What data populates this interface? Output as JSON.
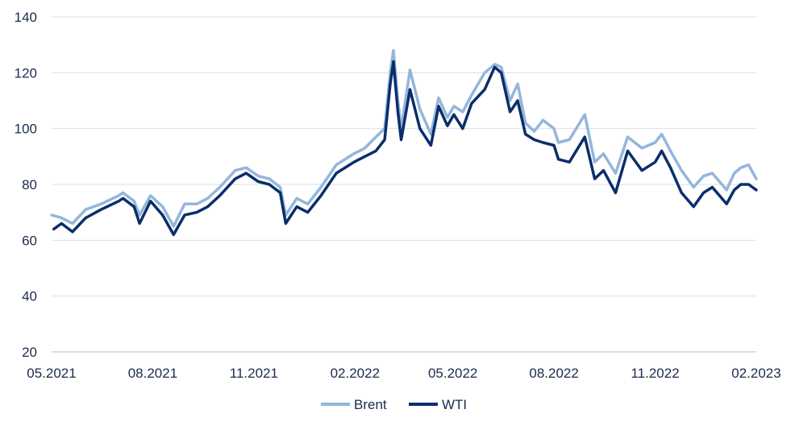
{
  "chart_data": {
    "type": "line",
    "title": "",
    "xlabel": "",
    "ylabel": "",
    "ylim": [
      20,
      140
    ],
    "yticks": [
      20,
      40,
      60,
      80,
      100,
      120,
      140
    ],
    "xlim": [
      "2021-05-01",
      "2023-02-01"
    ],
    "xticks": [
      {
        "date": "2021-05-01",
        "label": "05.2021"
      },
      {
        "date": "2021-08-01",
        "label": "08.2021"
      },
      {
        "date": "2021-11-01",
        "label": "11.2021"
      },
      {
        "date": "2022-02-01",
        "label": "02.2022"
      },
      {
        "date": "2022-05-01",
        "label": "05.2022"
      },
      {
        "date": "2022-08-01",
        "label": "08.2022"
      },
      {
        "date": "2022-11-01",
        "label": "11.2022"
      },
      {
        "date": "2023-02-01",
        "label": "02.2023"
      }
    ],
    "grid": true,
    "legend_position": "bottom-center",
    "series": [
      {
        "name": "Brent",
        "color": "#94b6dc",
        "points": [
          [
            "2021-05-01",
            69
          ],
          [
            "2021-05-10",
            68
          ],
          [
            "2021-05-20",
            66
          ],
          [
            "2021-06-01",
            71
          ],
          [
            "2021-06-15",
            73
          ],
          [
            "2021-07-01",
            76
          ],
          [
            "2021-07-05",
            77
          ],
          [
            "2021-07-15",
            74
          ],
          [
            "2021-07-20",
            69
          ],
          [
            "2021-07-30",
            76
          ],
          [
            "2021-08-10",
            72
          ],
          [
            "2021-08-20",
            65
          ],
          [
            "2021-08-30",
            73
          ],
          [
            "2021-09-10",
            73
          ],
          [
            "2021-09-20",
            75
          ],
          [
            "2021-10-01",
            79
          ],
          [
            "2021-10-15",
            85
          ],
          [
            "2021-10-25",
            86
          ],
          [
            "2021-11-05",
            83
          ],
          [
            "2021-11-15",
            82
          ],
          [
            "2021-11-25",
            79
          ],
          [
            "2021-11-30",
            69
          ],
          [
            "2021-12-10",
            75
          ],
          [
            "2021-12-20",
            73
          ],
          [
            "2022-01-01",
            79
          ],
          [
            "2022-01-15",
            87
          ],
          [
            "2022-01-31",
            91
          ],
          [
            "2022-02-10",
            93
          ],
          [
            "2022-02-20",
            97
          ],
          [
            "2022-02-28",
            100
          ],
          [
            "2022-03-05",
            120
          ],
          [
            "2022-03-08",
            128
          ],
          [
            "2022-03-12",
            110
          ],
          [
            "2022-03-15",
            100
          ],
          [
            "2022-03-23",
            121
          ],
          [
            "2022-04-01",
            107
          ],
          [
            "2022-04-11",
            98
          ],
          [
            "2022-04-18",
            111
          ],
          [
            "2022-04-26",
            104
          ],
          [
            "2022-05-02",
            108
          ],
          [
            "2022-05-10",
            106
          ],
          [
            "2022-05-18",
            112
          ],
          [
            "2022-05-30",
            120
          ],
          [
            "2022-06-08",
            123
          ],
          [
            "2022-06-14",
            122
          ],
          [
            "2022-06-22",
            110
          ],
          [
            "2022-06-29",
            116
          ],
          [
            "2022-07-06",
            102
          ],
          [
            "2022-07-14",
            99
          ],
          [
            "2022-07-22",
            103
          ],
          [
            "2022-08-01",
            100
          ],
          [
            "2022-08-05",
            95
          ],
          [
            "2022-08-15",
            96
          ],
          [
            "2022-08-29",
            105
          ],
          [
            "2022-09-07",
            88
          ],
          [
            "2022-09-15",
            91
          ],
          [
            "2022-09-26",
            84
          ],
          [
            "2022-10-07",
            97
          ],
          [
            "2022-10-20",
            93
          ],
          [
            "2022-11-01",
            95
          ],
          [
            "2022-11-07",
            98
          ],
          [
            "2022-11-15",
            92
          ],
          [
            "2022-11-25",
            85
          ],
          [
            "2022-12-06",
            79
          ],
          [
            "2022-12-15",
            83
          ],
          [
            "2022-12-23",
            84
          ],
          [
            "2023-01-05",
            78
          ],
          [
            "2023-01-12",
            84
          ],
          [
            "2023-01-18",
            86
          ],
          [
            "2023-01-25",
            87
          ],
          [
            "2023-02-01",
            82
          ]
        ]
      },
      {
        "name": "WTI",
        "color": "#0b2e6b",
        "points": [
          [
            "2021-05-03",
            64
          ],
          [
            "2021-05-10",
            66
          ],
          [
            "2021-05-20",
            63
          ],
          [
            "2021-06-01",
            68
          ],
          [
            "2021-06-15",
            71
          ],
          [
            "2021-07-01",
            74
          ],
          [
            "2021-07-05",
            75
          ],
          [
            "2021-07-15",
            72
          ],
          [
            "2021-07-20",
            66
          ],
          [
            "2021-07-30",
            74
          ],
          [
            "2021-08-10",
            69
          ],
          [
            "2021-08-20",
            62
          ],
          [
            "2021-08-30",
            69
          ],
          [
            "2021-09-10",
            70
          ],
          [
            "2021-09-20",
            72
          ],
          [
            "2021-10-01",
            76
          ],
          [
            "2021-10-15",
            82
          ],
          [
            "2021-10-25",
            84
          ],
          [
            "2021-11-05",
            81
          ],
          [
            "2021-11-15",
            80
          ],
          [
            "2021-11-25",
            77
          ],
          [
            "2021-11-30",
            66
          ],
          [
            "2021-12-10",
            72
          ],
          [
            "2021-12-20",
            70
          ],
          [
            "2022-01-01",
            76
          ],
          [
            "2022-01-15",
            84
          ],
          [
            "2022-01-31",
            88
          ],
          [
            "2022-02-10",
            90
          ],
          [
            "2022-02-20",
            92
          ],
          [
            "2022-02-28",
            96
          ],
          [
            "2022-03-05",
            116
          ],
          [
            "2022-03-08",
            124
          ],
          [
            "2022-03-12",
            106
          ],
          [
            "2022-03-15",
            96
          ],
          [
            "2022-03-23",
            114
          ],
          [
            "2022-04-01",
            100
          ],
          [
            "2022-04-11",
            94
          ],
          [
            "2022-04-18",
            108
          ],
          [
            "2022-04-26",
            101
          ],
          [
            "2022-05-02",
            105
          ],
          [
            "2022-05-10",
            100
          ],
          [
            "2022-05-18",
            109
          ],
          [
            "2022-05-30",
            114
          ],
          [
            "2022-06-08",
            122
          ],
          [
            "2022-06-14",
            120
          ],
          [
            "2022-06-22",
            106
          ],
          [
            "2022-06-29",
            110
          ],
          [
            "2022-07-06",
            98
          ],
          [
            "2022-07-14",
            96
          ],
          [
            "2022-07-22",
            95
          ],
          [
            "2022-08-01",
            94
          ],
          [
            "2022-08-05",
            89
          ],
          [
            "2022-08-15",
            88
          ],
          [
            "2022-08-29",
            97
          ],
          [
            "2022-09-07",
            82
          ],
          [
            "2022-09-15",
            85
          ],
          [
            "2022-09-26",
            77
          ],
          [
            "2022-10-07",
            92
          ],
          [
            "2022-10-20",
            85
          ],
          [
            "2022-11-01",
            88
          ],
          [
            "2022-11-07",
            92
          ],
          [
            "2022-11-15",
            86
          ],
          [
            "2022-11-25",
            77
          ],
          [
            "2022-12-06",
            72
          ],
          [
            "2022-12-15",
            77
          ],
          [
            "2022-12-23",
            79
          ],
          [
            "2023-01-05",
            73
          ],
          [
            "2023-01-12",
            78
          ],
          [
            "2023-01-18",
            80
          ],
          [
            "2023-01-25",
            80
          ],
          [
            "2023-02-01",
            78
          ]
        ]
      }
    ]
  }
}
